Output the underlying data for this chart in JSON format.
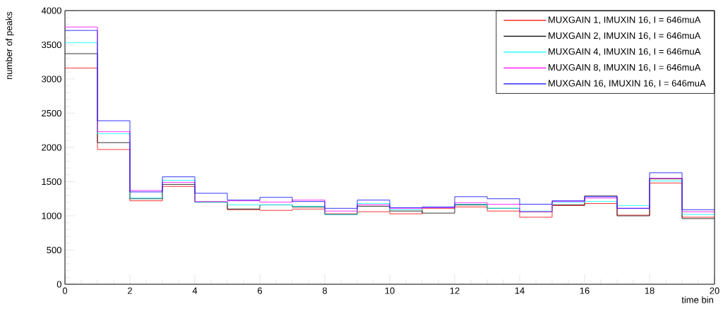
{
  "chart_data": {
    "type": "histogram",
    "xlabel": "time bin",
    "ylabel": "number of peaks",
    "bins": [
      0,
      1,
      2,
      3,
      4,
      5,
      6,
      7,
      8,
      9,
      10,
      11,
      12,
      13,
      14,
      15,
      16,
      17,
      18,
      19,
      20
    ],
    "series": [
      {
        "name": "MUXGAIN 1, IMUXIN 16, I = 646muA",
        "color": "#ff0000",
        "values": [
          3160,
          1970,
          1220,
          1430,
          1200,
          1090,
          1080,
          1100,
          1030,
          1060,
          1030,
          1110,
          1130,
          1070,
          980,
          1150,
          1180,
          1010,
          1480,
          980
        ]
      },
      {
        "name": "MUXGAIN 2, IMUXIN 16, I = 646muA",
        "color": "#000000",
        "values": [
          3370,
          2070,
          1250,
          1460,
          1200,
          1100,
          1160,
          1130,
          1020,
          1140,
          1070,
          1040,
          1160,
          1110,
          1060,
          1160,
          1290,
          1000,
          1540,
          960
        ]
      },
      {
        "name": "MUXGAIN 4, IMUXIN 16, I = 646muA",
        "color": "#00ffff",
        "values": [
          3530,
          2200,
          1260,
          1520,
          1200,
          1160,
          1160,
          1140,
          1020,
          1180,
          1090,
          1120,
          1170,
          1110,
          1070,
          1200,
          1210,
          1150,
          1510,
          1020
        ]
      },
      {
        "name": "MUXGAIN 8, IMUXIN 16, I = 646muA",
        "color": "#ff00ff",
        "values": [
          3760,
          2230,
          1370,
          1490,
          1210,
          1220,
          1200,
          1230,
          1070,
          1160,
          1110,
          1120,
          1190,
          1170,
          1060,
          1210,
          1260,
          1110,
          1550,
          1060
        ]
      },
      {
        "name": "MUXGAIN 16, IMUXIN 16, I = 646muA",
        "color": "#0000ff",
        "values": [
          3710,
          2390,
          1350,
          1570,
          1330,
          1230,
          1270,
          1210,
          1110,
          1230,
          1120,
          1130,
          1280,
          1250,
          1170,
          1220,
          1280,
          1110,
          1630,
          1090
        ]
      }
    ],
    "xlim": [
      0,
      20
    ],
    "xticks": [
      0,
      2,
      4,
      6,
      8,
      10,
      12,
      14,
      16,
      18,
      20
    ],
    "ylim": [
      0,
      4000
    ],
    "yticks": [
      0,
      500,
      1000,
      1500,
      2000,
      2500,
      3000,
      3500,
      4000
    ],
    "legend": "top right",
    "marker": "none"
  }
}
